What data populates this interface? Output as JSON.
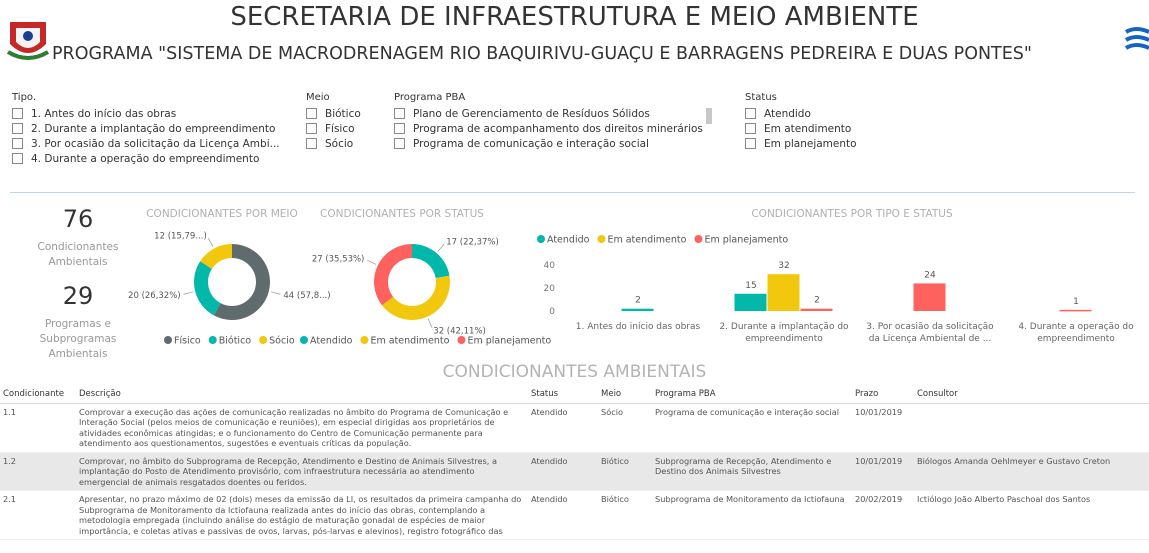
{
  "header": {
    "title": "SECRETARIA DE INFRAESTRUTURA E MEIO AMBIENTE",
    "subtitle": "PROGRAMA \"SISTEMA DE MACRODRENAGEM RIO BAQUIRIVU-GUAÇU E BARRAGENS PEDREIRA E DUAS PONTES\""
  },
  "filters": [
    {
      "title": "Tipo.",
      "options": [
        "1. Antes do início das obras",
        "2. Durante a implantação do empreendimento",
        "3. Por ocasião da solicitação da Licença Ambi...",
        "4. Durante a operação do empreendimento"
      ]
    },
    {
      "title": "Meio",
      "options": [
        "Biótico",
        "Físico",
        "Sócio"
      ]
    },
    {
      "title": "Programa PBA",
      "options": [
        "Plano de Gerenciamento de Resíduos Sólidos",
        "Programa de acompanhamento dos direitos minerários",
        "Programa de comunicação e interação social"
      ]
    },
    {
      "title": "Status",
      "options": [
        "Atendido",
        "Em atendimento",
        "Em planejamento"
      ]
    }
  ],
  "kpis": [
    {
      "value": "76",
      "label": "Condicionantes Ambientais"
    },
    {
      "value": "29",
      "label": "Programas e Subprogramas Ambientais"
    }
  ],
  "chart_data": [
    {
      "type": "donut",
      "title": "CONDICIONANTES POR MEIO",
      "categories": [
        "Físico",
        "Biótico",
        "Sócio"
      ],
      "values": [
        44,
        20,
        12
      ],
      "value_labels": [
        "44 (57,8...)",
        "20 (26,32%)",
        "12 (15,79...)"
      ],
      "colors": [
        "#5f6b6d",
        "#01b8aa",
        "#f2c80f"
      ]
    },
    {
      "type": "donut",
      "title": "CONDICIONANTES POR STATUS",
      "categories": [
        "Atendido",
        "Em atendimento",
        "Em planejamento"
      ],
      "values": [
        17,
        32,
        27
      ],
      "value_labels": [
        "17 (22,37%)",
        "32 (42,11%)",
        "27 (35,53%)"
      ],
      "colors": [
        "#01b8aa",
        "#f2c80f",
        "#fd625e"
      ]
    },
    {
      "type": "bar",
      "title": "CONDICIONANTES POR TIPO E STATUS",
      "categories": [
        "1. Antes do início das obras",
        "2. Durante a implantação do empreendimento",
        "3. Por ocasião da solicitação da Licença Ambiental de ...",
        "4. Durante a operação do empreendimento"
      ],
      "series": [
        {
          "name": "Atendido",
          "color": "#01b8aa",
          "values": [
            2,
            15,
            null,
            null
          ]
        },
        {
          "name": "Em atendimento",
          "color": "#f2c80f",
          "values": [
            null,
            32,
            null,
            null
          ]
        },
        {
          "name": "Em planejamento",
          "color": "#fd625e",
          "values": [
            null,
            2,
            24,
            1
          ]
        }
      ],
      "ylim": [
        0,
        40
      ],
      "yticks": [
        0,
        20,
        40
      ],
      "grid": false,
      "legend": "top-left"
    }
  ],
  "table": {
    "title": "CONDICIONANTES AMBIENTAIS",
    "columns": [
      "Condicionante",
      "Descrição",
      "Status",
      "Meio",
      "Programa PBA",
      "Prazo",
      "Consultor"
    ],
    "rows": [
      [
        "1.1",
        "Comprovar a execução das ações de comunicação realizadas no âmbito do Programa de Comunicação e Interação Social (pelos meios de comunicação e reuniões), em especial dirigidas aos proprietários de atividades econômicas atingidas; e o funcionamento do Centro de Comunicação permanente para atendimento aos questionamentos, sugestões e eventuais críticas da população.",
        "Atendido",
        "Sócio",
        "Programa de comunicação e interação social",
        "10/01/2019",
        ""
      ],
      [
        "1.2",
        "Comprovar, no âmbito do Subprograma de Recepção, Atendimento e Destino de Animais Silvestres, a implantação do Posto de Atendimento provisório, com infraestrutura necessária ao atendimento emergencial de animais resgatados doentes ou feridos.",
        "Atendido",
        "Biótico",
        "Subprograma de Recepção, Atendimento e Destino dos Animais Silvestres",
        "10/01/2019",
        "Biólogos Amanda Oehlmeyer e Gustavo Creton"
      ],
      [
        "2.1",
        "Apresentar, no prazo máximo de 02 (dois) meses da emissão da LI, os resultados da primeira campanha do Subprograma de Monitoramento da Ictiofauna realizada antes do início das obras, contemplando a metodologia empregada (incluindo análise do estágio de maturação gonadal de espécies de maior importância, e coletas ativas e passivas de ovos, larvas, pós-larvas e alevinos), registro fotográfico das",
        "Atendido",
        "Biótico",
        "Subprograma de Monitoramento da Ictiofauna",
        "20/02/2019",
        "Ictiólogo João Alberto Paschoal dos Santos"
      ]
    ]
  }
}
